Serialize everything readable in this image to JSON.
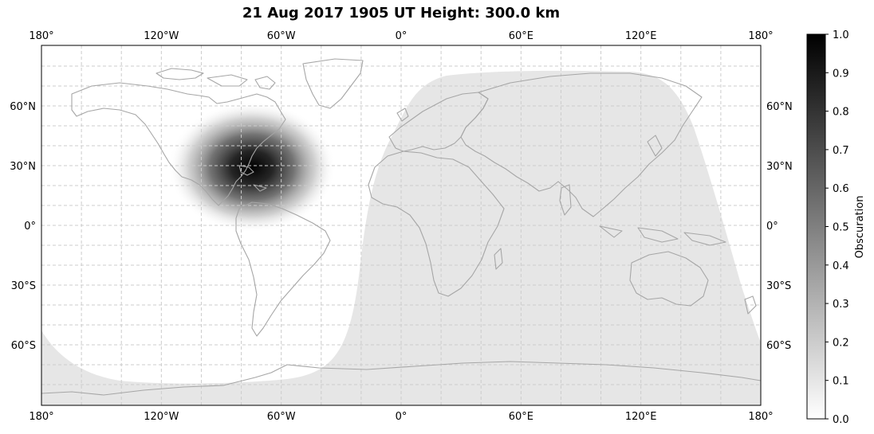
{
  "title": "21 Aug 2017 1905 UT Height: 300.0 km",
  "map": {
    "lon_labels": [
      "180°",
      "120°W",
      "60°W",
      "0°",
      "60°E",
      "120°E",
      "180°"
    ],
    "lat_labels": [
      "60°N",
      "30°N",
      "0°",
      "30°S",
      "60°S"
    ],
    "gridline_color": "#cccccc",
    "coastline_color": "#a6a6a6",
    "night_shade_color": "#e6e6e6"
  },
  "colorbar": {
    "label": "Obscuration",
    "ticks": [
      "0.0",
      "0.1",
      "0.2",
      "0.3",
      "0.4",
      "0.5",
      "0.6",
      "0.7",
      "0.8",
      "0.9",
      "1.0"
    ],
    "range": [
      0.0,
      1.0
    ],
    "colormap": [
      "#ffffff",
      "#000000"
    ]
  }
}
